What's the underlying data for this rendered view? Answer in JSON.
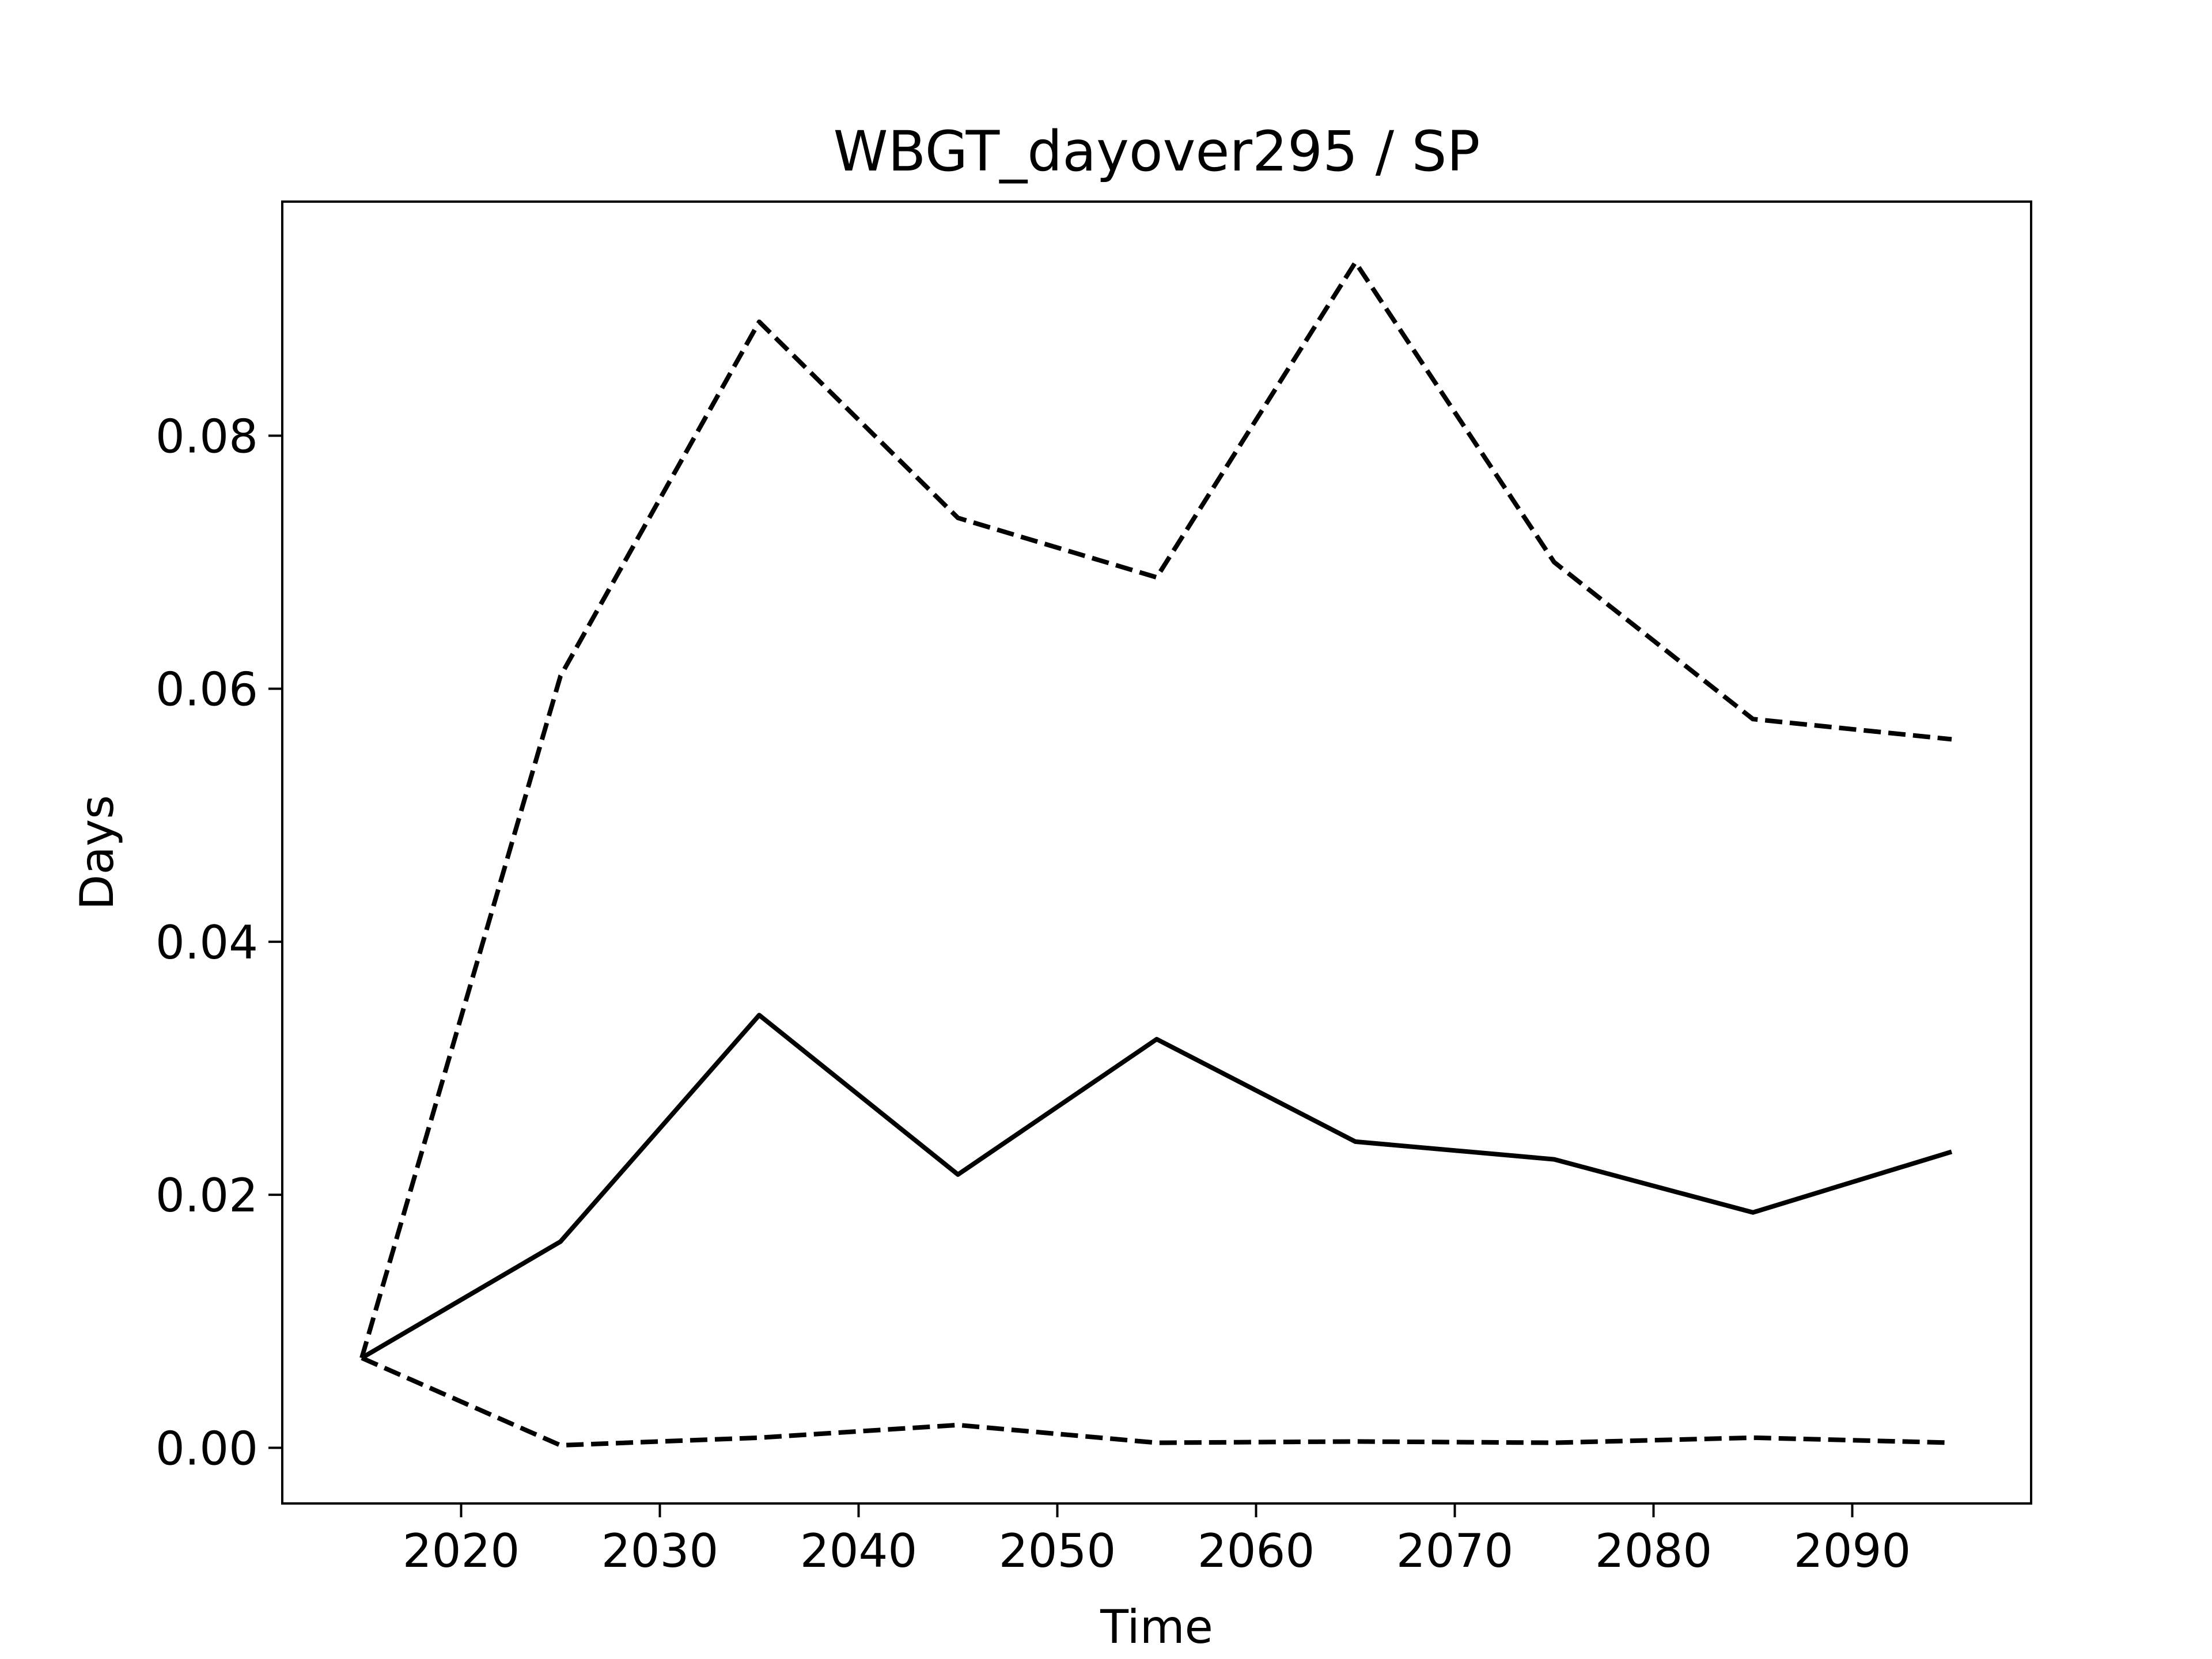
{
  "chart_data": {
    "type": "line",
    "title": "WBGT_dayover295 / SP",
    "xlabel": "Time",
    "ylabel": "Days",
    "xlim": [
      2011,
      2099
    ],
    "ylim": [
      -0.0044,
      0.0985
    ],
    "x_ticks": [
      2020,
      2030,
      2040,
      2050,
      2060,
      2070,
      2080,
      2090
    ],
    "x_tick_labels": [
      "2020",
      "2030",
      "2040",
      "2050",
      "2060",
      "2070",
      "2080",
      "2090"
    ],
    "y_ticks": [
      0.0,
      0.02,
      0.04,
      0.06,
      0.08
    ],
    "y_tick_labels": [
      "0.00",
      "0.02",
      "0.04",
      "0.06",
      "0.08"
    ],
    "grid": false,
    "legend": "none",
    "x": [
      2015,
      2025,
      2035,
      2045,
      2055,
      2065,
      2075,
      2085,
      2095
    ],
    "series": [
      {
        "style": "solid",
        "color": "#000000",
        "values": [
          0.0071,
          0.0163,
          0.0342,
          0.0216,
          0.0323,
          0.0242,
          0.0228,
          0.0186,
          0.0234
        ]
      },
      {
        "style": "dashed",
        "color": "#000000",
        "values": [
          0.0071,
          0.061,
          0.089,
          0.0735,
          0.0688,
          0.0937,
          0.07,
          0.0576,
          0.056
        ]
      },
      {
        "style": "dashed",
        "color": "#000000",
        "values": [
          0.0071,
          0.0002,
          0.0008,
          0.0018,
          0.0004,
          0.0005,
          0.0004,
          0.0008,
          0.0004
        ]
      }
    ]
  }
}
